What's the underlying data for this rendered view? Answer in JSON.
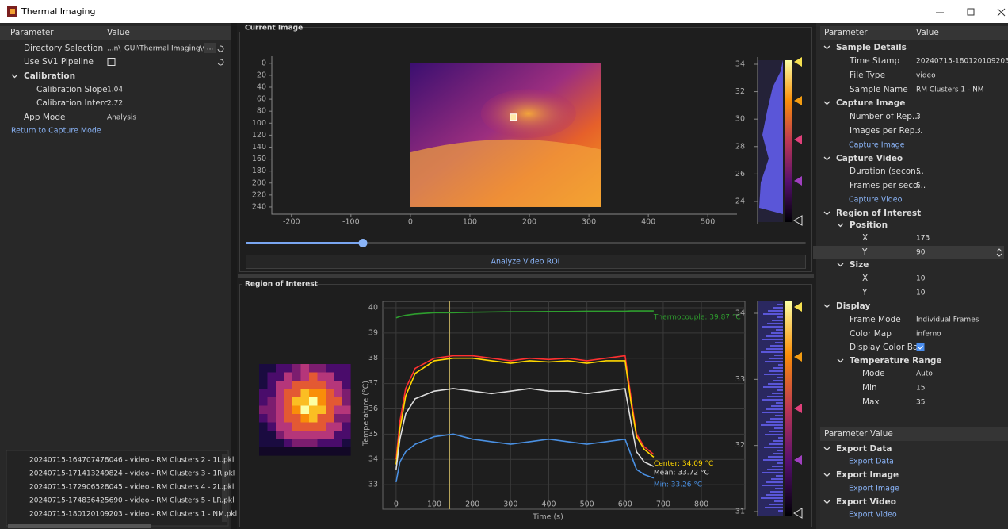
{
  "window": {
    "title": "Thermal Imaging"
  },
  "left_panel": {
    "headers": [
      "Parameter",
      "Value"
    ],
    "rows": [
      {
        "label": "Directory Selection",
        "value": "...n\\_GUI\\Thermal Imaging\\win",
        "button": "..."
      },
      {
        "label": "Use SV1 Pipeline",
        "value": false
      },
      {
        "label": "Calibration"
      },
      {
        "label": "Calibration Slope",
        "value": 1.04
      },
      {
        "label": "Calibration Interc...",
        "value": 2.72
      },
      {
        "label": "App Mode",
        "value": "Analysis"
      },
      {
        "label": "Return to Capture Mode"
      }
    ],
    "files": [
      "20240715-164707478046 - video - RM Clusters 2 -  1L.pkl",
      "20240715-171413249824 - video - RM Clusters 3 -  1R.pkl",
      "20240715-172906528045 - video - RM Clusters 4 -  2L.pkl",
      "20240715-174836425690 - video - RM Clusters 5 -  LR.pkl",
      "20240715-180120109203 - video - RM Clusters 1 - NM.pkl"
    ]
  },
  "current_image": {
    "title": "Current Image",
    "xlim": [
      -233,
      549
    ],
    "ylim": [
      -13,
      252
    ],
    "xticks": [
      -200,
      -100,
      0,
      100,
      200,
      300,
      400,
      500
    ],
    "yticks": [
      0,
      20,
      40,
      60,
      80,
      100,
      120,
      140,
      160,
      180,
      200,
      220,
      240
    ],
    "colorbar_lim": [
      22.38,
      34.52
    ],
    "colorbar_ticks": [
      24,
      26,
      28,
      30,
      32,
      34
    ],
    "button": "Analyze Video ROI"
  },
  "roi_plot": {
    "title": "Region of Interest",
    "xlabel": "Time (s)",
    "ylabel": "Temperature (°C)",
    "xlim": [
      -35,
      914
    ],
    "ylim": [
      32.03,
      40.25
    ],
    "xticks": [
      0,
      100,
      200,
      300,
      400,
      500,
      600,
      700,
      800
    ],
    "yticks": [
      33,
      34,
      35,
      36,
      37,
      38,
      39,
      40
    ],
    "cursor_x": 140,
    "x": [
      0,
      10,
      25,
      50,
      100,
      150,
      200,
      250,
      300,
      350,
      400,
      450,
      500,
      550,
      600,
      615,
      630,
      650,
      675
    ],
    "series": [
      {
        "color": "#2e9e2e",
        "label": "Thermocouple: 39.87 °C",
        "values": [
          39.6,
          39.65,
          39.7,
          39.75,
          39.8,
          39.8,
          39.82,
          39.83,
          39.84,
          39.84,
          39.85,
          39.85,
          39.86,
          39.86,
          39.86,
          39.87,
          39.87,
          39.87,
          39.87
        ]
      },
      {
        "color": "#ff3030",
        "values": [
          34.0,
          35.5,
          36.8,
          37.6,
          38.0,
          38.1,
          38.1,
          38.0,
          37.9,
          38.0,
          37.95,
          38.0,
          37.9,
          38.0,
          38.1,
          36.5,
          35.0,
          34.5,
          34.2
        ]
      },
      {
        "color": "#ffd700",
        "label": "Center: 34.09 °C",
        "values": [
          33.8,
          35.2,
          36.5,
          37.4,
          37.9,
          38.0,
          38.0,
          37.9,
          37.8,
          37.9,
          37.85,
          37.9,
          37.8,
          37.9,
          37.9,
          36.3,
          34.9,
          34.4,
          34.09
        ]
      },
      {
        "color": "#dddddd",
        "label": "Mean: 33.72 °C",
        "values": [
          33.6,
          34.8,
          35.8,
          36.4,
          36.7,
          36.8,
          36.7,
          36.6,
          36.7,
          36.8,
          36.7,
          36.7,
          36.6,
          36.7,
          36.8,
          35.5,
          34.3,
          33.9,
          33.72
        ]
      },
      {
        "color": "#4a90e2",
        "label": "Min: 33.26 °C",
        "values": [
          33.1,
          33.9,
          34.3,
          34.6,
          34.9,
          35.0,
          34.8,
          34.7,
          34.6,
          34.7,
          34.8,
          34.7,
          34.6,
          34.7,
          34.8,
          34.2,
          33.6,
          33.4,
          33.26
        ]
      }
    ],
    "colorbar_lim": [
      30.94,
      34.18
    ],
    "colorbar_ticks": [
      31,
      32,
      33,
      34
    ]
  },
  "right_panel": {
    "headers": [
      "Parameter",
      "Value"
    ],
    "rows": [
      {
        "label": "Sample Details"
      },
      {
        "label": "Time Stamp",
        "value": "20240715-180120109203"
      },
      {
        "label": "File Type",
        "value": "video"
      },
      {
        "label": "Sample Name",
        "value": "RM Clusters 1 - NM"
      },
      {
        "label": "Capture Image"
      },
      {
        "label": "Number of Rep...",
        "value": 3
      },
      {
        "label": "Images per Rep...",
        "value": 3
      },
      {
        "label": "Capture Image"
      },
      {
        "label": "Capture Video"
      },
      {
        "label": "Duration (secon...",
        "value": 5
      },
      {
        "label": "Frames per seco...",
        "value": 5
      },
      {
        "label": "Capture Video"
      },
      {
        "label": "Region of Interest"
      },
      {
        "label": "Position"
      },
      {
        "label": "X",
        "value": 173
      },
      {
        "label": "Y",
        "value": 90
      },
      {
        "label": "Size"
      },
      {
        "label": "X",
        "value": 10
      },
      {
        "label": "Y",
        "value": 10
      },
      {
        "label": "Display"
      },
      {
        "label": "Frame Mode",
        "value": "Individual Frames"
      },
      {
        "label": "Color Map",
        "value": "inferno"
      },
      {
        "label": "Display Color Bar",
        "value": true
      },
      {
        "label": "Temperature Range"
      },
      {
        "label": "Mode",
        "value": "Auto"
      },
      {
        "label": "Min",
        "value": 15
      },
      {
        "label": "Max",
        "value": 35
      }
    ]
  },
  "export_panel": {
    "headers": [
      "Parameter",
      "Value"
    ],
    "rows": [
      {
        "label": "Export Data"
      },
      {
        "label": "Export Data"
      },
      {
        "label": "Export Image"
      },
      {
        "label": "Export Image"
      },
      {
        "label": "Export Video"
      },
      {
        "label": "Export Video"
      }
    ]
  }
}
